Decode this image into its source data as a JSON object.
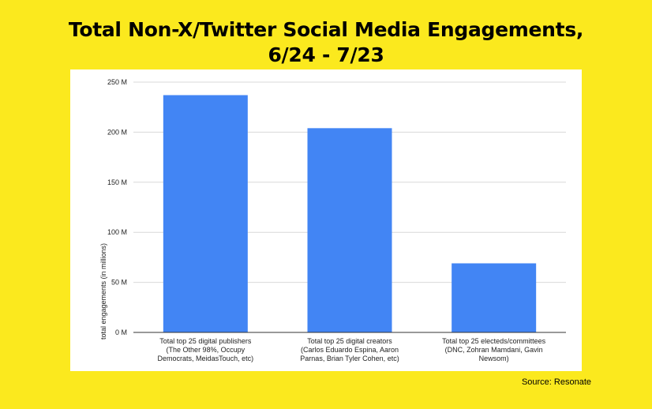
{
  "page": {
    "title_line1": "Total Non-X/Twitter Social Media Engagements,",
    "title_line2": "6/24 - 7/23",
    "source": "Source: Resonate"
  },
  "colors": {
    "background": "#fbe91e",
    "bar": "#4285f4",
    "grid": "#d9d9d9",
    "axis": "#333333"
  },
  "chart_data": {
    "type": "bar",
    "title": "Total Non-X/Twitter Social Media Engagements, 6/24 - 7/23",
    "xlabel": "",
    "ylabel": "total engagements (in millions)",
    "ylim": [
      0,
      250
    ],
    "grid": true,
    "yticks": [
      0,
      50,
      100,
      150,
      200,
      250
    ],
    "ytick_labels": [
      "0 M",
      "50 M",
      "100 M",
      "150 M",
      "200 M",
      "250 M"
    ],
    "categories": [
      [
        "Total top 25 digital publishers",
        "(The Other 98%, Occupy",
        "Democrats, MeidasTouch, etc)"
      ],
      [
        "Total top 25 digital creators",
        "(Carlos Eduardo Espina, Aaron",
        "Parnas, Brian Tyler Cohen, etc)"
      ],
      [
        "Total top 25 electeds/committees",
        "(DNC, Zohran Mamdani, Gavin",
        "Newsom)"
      ]
    ],
    "values": [
      237,
      204,
      69
    ]
  }
}
